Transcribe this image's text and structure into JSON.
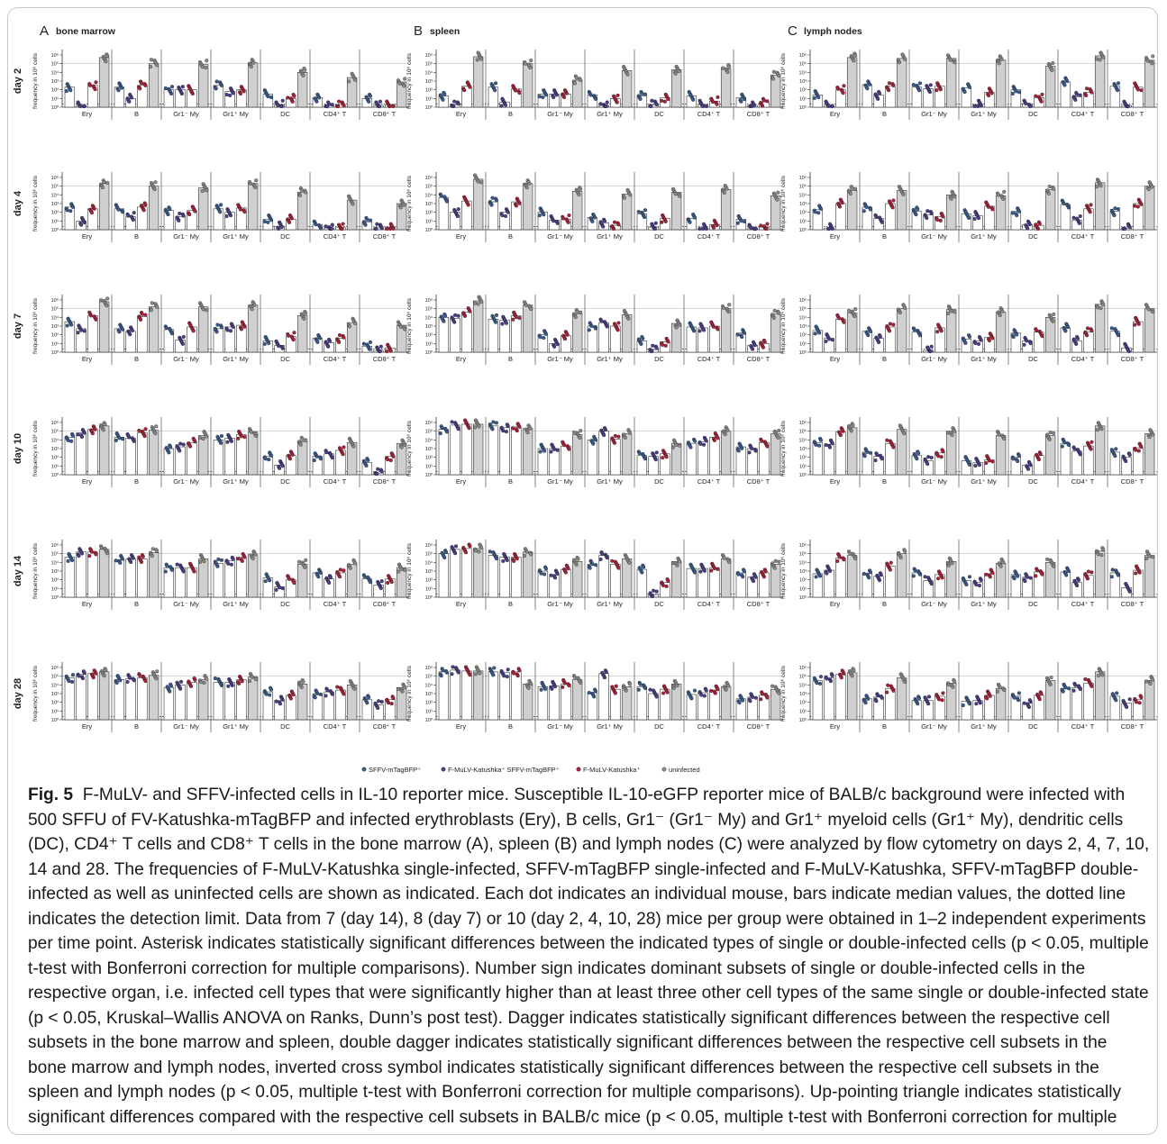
{
  "figure": {
    "panels": [
      {
        "letter": "A",
        "title": "bone marrow"
      },
      {
        "letter": "B",
        "title": "spleen"
      },
      {
        "letter": "C",
        "title": "lymph nodes"
      }
    ],
    "days": [
      "day 2",
      "day 4",
      "day 7",
      "day 10",
      "day 14",
      "day 28"
    ],
    "cell_types": [
      "Ery",
      "B",
      "Gr1⁻ My",
      "Gr1⁺ My",
      "DC",
      "CD4⁺ T",
      "CD8⁺ T"
    ],
    "y_axis_label": "frequency in 10⁶ cells",
    "y_ticks": [
      "10⁰",
      "10¹",
      "10²",
      "10³",
      "10⁴",
      "10⁵",
      "10⁶"
    ],
    "legend": [
      {
        "name": "SFFV-mTagBFP⁺",
        "color": "#3a5b8c"
      },
      {
        "name": "F-MuLV-Katushka⁺ SFFV-mTagBFP⁺",
        "color": "#4b3f87"
      },
      {
        "name": "F-MuLV-Katushka⁺",
        "color": "#a8233a"
      },
      {
        "name": "uninfected",
        "color": "#8a8a8a"
      }
    ]
  },
  "chart_data": {
    "type": "bar",
    "description_units": "log10 frequency in 10⁶ cells (median values, approximate)",
    "groups": [
      "SFFV-mTagBFP⁺",
      "F-MuLV-Katushka⁺ SFFV-mTagBFP⁺",
      "F-MuLV-Katushka⁺",
      "uninfected"
    ],
    "categories": [
      "Ery",
      "B",
      "Gr1⁻ My",
      "Gr1⁺ My",
      "DC",
      "CD4⁺ T",
      "CD8⁺ T"
    ],
    "y_scale": "log",
    "ylim": [
      "10⁰",
      "10⁶"
    ],
    "detection_limit": "dotted line near 10⁰",
    "panels": [
      {
        "organ": "bone marrow",
        "days": [
          {
            "day": "day 2",
            "values": [
              [
                2.3,
                0.2,
                2.5,
                5.7
              ],
              [
                2.3,
                1,
                2.5,
                5
              ],
              [
                2,
                2,
                2,
                4.9
              ],
              [
                2.5,
                1.8,
                2,
                5.1
              ],
              [
                1.5,
                0.3,
                1,
                4
              ],
              [
                1.1,
                0.2,
                0.3,
                3.4
              ],
              [
                1,
                0.2,
                0.3,
                2.9
              ]
            ]
          },
          {
            "day": "day 4",
            "values": [
              [
                2.6,
                1,
                2.4,
                5.3
              ],
              [
                2.4,
                1.5,
                2.6,
                5
              ],
              [
                2.2,
                1.5,
                2.2,
                4.8
              ],
              [
                2.4,
                2,
                2.5,
                5.3
              ],
              [
                1.2,
                0.4,
                1.2,
                4.3
              ],
              [
                0.6,
                0.2,
                0.3,
                3.4
              ],
              [
                0.9,
                0.2,
                0.3,
                3
              ]
            ]
          },
          {
            "day": "day 7",
            "values": [
              [
                3.5,
                2.7,
                4.2,
                5.8
              ],
              [
                2.7,
                2.4,
                4.1,
                5.2
              ],
              [
                2.6,
                1.4,
                2.9,
                5.2
              ],
              [
                2.7,
                2.9,
                3.1,
                5.4
              ],
              [
                1.3,
                0.8,
                1.8,
                4.2
              ],
              [
                1.6,
                1.1,
                1.6,
                3.4
              ],
              [
                0.7,
                0.2,
                0.5,
                3.1
              ]
            ]
          },
          {
            "day": "day 10",
            "values": [
              [
                4.3,
                4.8,
                5.2,
                5.6
              ],
              [
                4.3,
                4.2,
                4.8,
                5.1
              ],
              [
                3,
                3.2,
                3.7,
                4.5
              ],
              [
                4,
                4.2,
                4.6,
                4.9
              ],
              [
                2.1,
                1.1,
                2.2,
                3.8
              ],
              [
                2.1,
                2.4,
                2.8,
                3.7
              ],
              [
                1.4,
                0.2,
                2.1,
                3.6
              ]
            ]
          },
          {
            "day": "day 14",
            "values": [
              [
                4.6,
                5.2,
                5.2,
                5.5
              ],
              [
                4.3,
                4.4,
                4.4,
                5.1
              ],
              [
                3.4,
                3.4,
                3.4,
                4.4
              ],
              [
                3.9,
                4.2,
                4.6,
                4.9
              ],
              [
                2.2,
                1.2,
                2,
                3.8
              ],
              [
                2.8,
                2.1,
                2.8,
                3.8
              ],
              [
                2.1,
                1.4,
                2.1,
                3.4
              ]
            ]
          },
          {
            "day": "day 28",
            "values": [
              [
                4.8,
                5.2,
                5.3,
                5.5
              ],
              [
                4.6,
                4.7,
                4.8,
                5.1
              ],
              [
                3.7,
                4,
                4.3,
                4.6
              ],
              [
                4.3,
                4.3,
                4.6,
                4.9
              ],
              [
                3.2,
                2.2,
                2.8,
                4.1
              ],
              [
                3,
                3.2,
                3.4,
                4
              ],
              [
                2.3,
                1.7,
                2.3,
                3.7
              ]
            ]
          }
        ]
      },
      {
        "organ": "spleen",
        "days": [
          {
            "day": "day 2",
            "values": [
              [
                1.3,
                0.3,
                2.4,
                5.8
              ],
              [
                2.3,
                0.6,
                2.1,
                5
              ],
              [
                1.5,
                1.5,
                1.5,
                3.1
              ],
              [
                1.4,
                0.2,
                1,
                4.2
              ],
              [
                1.3,
                0.3,
                1.1,
                4.3
              ],
              [
                1.3,
                0.3,
                0.7,
                4.4
              ],
              [
                1.1,
                0.2,
                0.6,
                3.7
              ]
            ]
          },
          {
            "day": "day 4",
            "values": [
              [
                3.7,
                2,
                3.3,
                5.8
              ],
              [
                3.2,
                2,
                3.2,
                5.3
              ],
              [
                2,
                1.1,
                1.2,
                4.4
              ],
              [
                1.4,
                0.8,
                0.5,
                4.1
              ],
              [
                1.8,
                0.3,
                1.3,
                4.3
              ],
              [
                1.3,
                0.2,
                0.6,
                4.6
              ],
              [
                1.2,
                0.2,
                0.3,
                3.9
              ]
            ]
          },
          {
            "day": "day 7",
            "values": [
              [
                4,
                3.9,
                4.6,
                5.9
              ],
              [
                3.8,
                3.7,
                4.2,
                5.4
              ],
              [
                2,
                1,
                1.9,
                4.4
              ],
              [
                3,
                3.4,
                3,
                4.3
              ],
              [
                1.3,
                0.3,
                1.2,
                3.3
              ],
              [
                2.9,
                2.8,
                3,
                5
              ],
              [
                2.2,
                0.8,
                1,
                4.4
              ]
            ]
          },
          {
            "day": "day 10",
            "values": [
              [
                5.2,
                5.7,
                5.8,
                5.8
              ],
              [
                5.6,
                5.4,
                5.5,
                5.3
              ],
              [
                3,
                3,
                3.3,
                4.6
              ],
              [
                4,
                5,
                4.1,
                4.7
              ],
              [
                2.2,
                2.1,
                2.4,
                3.6
              ],
              [
                3.6,
                3.8,
                4.3,
                5
              ],
              [
                3.2,
                3,
                3.7,
                4.7
              ]
            ]
          },
          {
            "day": "day 14",
            "values": [
              [
                5,
                5.5,
                5.6,
                5.6
              ],
              [
                4.8,
                4.6,
                4.6,
                5.2
              ],
              [
                3,
                2.6,
                3.2,
                4.1
              ],
              [
                3.8,
                4.8,
                3.8,
                4.4
              ],
              [
                3.2,
                0.3,
                1.7,
                4.1
              ],
              [
                3.3,
                3.3,
                3.4,
                4.4
              ],
              [
                2.8,
                2.3,
                2.8,
                3.8
              ]
            ]
          },
          {
            "day": "day 28",
            "values": [
              [
                5.5,
                5.7,
                5.6,
                5.6
              ],
              [
                5.5,
                5.4,
                5.5,
                4.1
              ],
              [
                3.8,
                3.9,
                4.1,
                4.6
              ],
              [
                3.1,
                5.3,
                3.5,
                3.8
              ],
              [
                3.8,
                3,
                3.5,
                4.1
              ],
              [
                2.9,
                3.1,
                3.4,
                3.8
              ],
              [
                2.4,
                2.6,
                2.8,
                3.5
              ]
            ]
          }
        ]
      },
      {
        "organ": "lymph nodes",
        "days": [
          {
            "day": "day 2",
            "values": [
              [
                1.4,
                0.2,
                2,
                5.7
              ],
              [
                2.6,
                1.4,
                2.4,
                5.6
              ],
              [
                2.3,
                2.1,
                2.4,
                5.6
              ],
              [
                2.2,
                0.3,
                1.7,
                5.4
              ],
              [
                2,
                0.4,
                1.1,
                4.7
              ],
              [
                2.9,
                1.2,
                1.7,
                5.9
              ],
              [
                2.4,
                0.2,
                2.3,
                5.4
              ]
            ]
          },
          {
            "day": "day 4",
            "values": [
              [
                2.3,
                0.2,
                3,
                4.5
              ],
              [
                2.6,
                1.3,
                3,
                4.5
              ],
              [
                2.1,
                1.7,
                1.5,
                4
              ],
              [
                1.8,
                1.6,
                2.7,
                3.9
              ],
              [
                2.1,
                0.6,
                0.5,
                4.6
              ],
              [
                2.9,
                1.1,
                2.4,
                5.4
              ],
              [
                2.1,
                0.2,
                3,
                5
              ]
            ]
          },
          {
            "day": "day 7",
            "values": [
              [
                2.5,
                1.6,
                3.8,
                4.5
              ],
              [
                2.4,
                1.6,
                2.9,
                5
              ],
              [
                2.3,
                0.2,
                2.8,
                4.9
              ],
              [
                1.5,
                1.3,
                1.7,
                4.6
              ],
              [
                2.2,
                1.3,
                2.3,
                4
              ],
              [
                2.8,
                1.3,
                2.3,
                5.5
              ],
              [
                2.4,
                0.5,
                3.5,
                5
              ]
            ]
          },
          {
            "day": "day 10",
            "values": [
              [
                3.7,
                3.5,
                4.9,
                5.4
              ],
              [
                2.6,
                2.1,
                3.6,
                5.2
              ],
              [
                2.2,
                1.6,
                2.5,
                5
              ],
              [
                1.6,
                1.4,
                1.7,
                4.5
              ],
              [
                2,
                1.1,
                2.2,
                4.5
              ],
              [
                3.6,
                2.7,
                3.3,
                5.6
              ],
              [
                2.6,
                2,
                3.1,
                4.7
              ]
            ]
          },
          {
            "day": "day 14",
            "values": [
              [
                2.7,
                3.1,
                4.5,
                4.8
              ],
              [
                2.7,
                2.4,
                3.6,
                5
              ],
              [
                2.8,
                1.9,
                2.6,
                4.1
              ],
              [
                1.9,
                1.7,
                2.7,
                3.9
              ],
              [
                2.6,
                2.3,
                2.9,
                4
              ],
              [
                2.9,
                1.7,
                2.5,
                5.3
              ],
              [
                2.8,
                1.1,
                3.1,
                4.8
              ]
            ]
          },
          {
            "day": "day 28",
            "values": [
              [
                4.5,
                4.8,
                5.2,
                5.4
              ],
              [
                2.4,
                2.6,
                3.6,
                4.8
              ],
              [
                2.2,
                2.2,
                2.7,
                4.2
              ],
              [
                2.1,
                2.2,
                2.8,
                3.6
              ],
              [
                2.7,
                1.9,
                2.8,
                4.5
              ],
              [
                3.6,
                3.7,
                4.2,
                5.5
              ],
              [
                2.7,
                1.9,
                2.3,
                4.5
              ]
            ]
          }
        ]
      }
    ]
  },
  "caption": {
    "label": "Fig. 5",
    "text": "F-MuLV- and SFFV-infected cells in IL-10 reporter mice.  Susceptible IL-10-eGFP reporter mice of BALB/c background were infected with 500 SFFU of FV-Katushka-mTagBFP and infected erythroblasts (Ery), B cells, Gr1⁻ (Gr1⁻ My) and Gr1⁺ myeloid cells (Gr1⁺ My), dendritic cells (DC), CD4⁺ T cells and CD8⁺ T cells in the bone marrow (A), spleen (B) and lymph nodes (C) were analyzed by flow cytometry on days 2, 4, 7, 10, 14 and 28. The frequencies of F-MuLV-Katushka single-infected, SFFV-mTagBFP single-infected and F-MuLV-Katushka, SFFV-mTagBFP double-infected as well as uninfected cells are shown as indicated.  Each dot indicates an individual mouse, bars indicate median values, the dotted line indicates the detection limit. Data from 7 (day 14), 8 (day 7) or 10 (day 2, 4, 10, 28) mice per group were obtained in 1–2 independent experiments per time point. Asterisk indicates statistically significant differences between the indicated types of single or double-infected cells (p < 0.05, multiple t-test with Bonferroni correction for multiple comparisons). Number sign indicates dominant subsets of single or double-infected cells in the respective organ, i.e. infected cell types that were significantly higher than at least three other cell types of the same single or double-infected state (p < 0.05, Kruskal–Wallis ANOVA on Ranks, Dunn’s post test). Dagger indicates statistically significant differences between the respective cell subsets in the bone marrow and spleen, double dagger indicates statistically significant differences between the respective cell subsets in the bone marrow and lymph nodes, inverted cross symbol indicates statistically significant differences between the respective cell subsets in the spleen and lymph nodes (p < 0.05, multiple t-test with Bonferroni correction for multiple comparisons). Up-pointing triangle indicates statistically significant differences compared with the respective cell subsets in BALB/c mice (p < 0.05, multiple t-test with Bonferroni correction for multiple comparisons)"
  }
}
